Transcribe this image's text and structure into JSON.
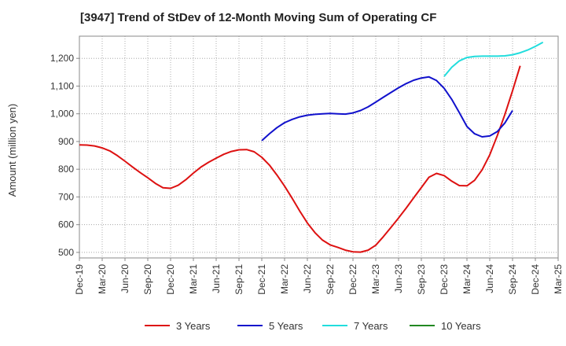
{
  "chart_data": {
    "type": "line",
    "title": "[3947]  Trend of StDev of 12-Month Moving Sum of Operating CF",
    "ylabel": "Amount (million yen)",
    "xlabel": "",
    "ylim": [
      480,
      1280
    ],
    "yticks": [
      500,
      600,
      700,
      800,
      900,
      1000,
      1100,
      1200
    ],
    "ytick_labels": [
      "500",
      "600",
      "700",
      "800",
      "900",
      "1,000",
      "1,100",
      "1,200"
    ],
    "xtick_labels": [
      "Dec-19",
      "Mar-20",
      "Jun-20",
      "Sep-20",
      "Dec-20",
      "Mar-21",
      "Jun-21",
      "Sep-21",
      "Dec-21",
      "Mar-22",
      "Jun-22",
      "Sep-22",
      "Dec-22",
      "Mar-23",
      "Jun-23",
      "Sep-23",
      "Dec-23",
      "Mar-24",
      "Jun-24",
      "Sep-24",
      "Dec-24",
      "Mar-25"
    ],
    "grid": true,
    "legend_position": "bottom",
    "series": [
      {
        "name": "3 Years",
        "color": "#dd1111",
        "start_index": 0,
        "values": [
          888,
          887,
          884,
          877,
          866,
          849,
          829,
          808,
          788,
          769,
          749,
          733,
          731,
          742,
          762,
          786,
          808,
          825,
          840,
          854,
          864,
          870,
          871,
          863,
          843,
          815,
          779,
          739,
          695,
          649,
          606,
          571,
          544,
          527,
          518,
          508,
          502,
          501,
          508,
          526,
          557,
          590,
          624,
          660,
          697,
          734,
          771,
          785,
          777,
          757,
          741,
          740,
          760,
          798,
          852,
          922,
          998,
          1083,
          1173
        ]
      },
      {
        "name": "5 Years",
        "color": "#1111cc",
        "start_index": 24,
        "values": [
          903,
          928,
          950,
          968,
          980,
          989,
          995,
          998,
          1000,
          1001,
          1000,
          999,
          1003,
          1012,
          1025,
          1042,
          1060,
          1077,
          1094,
          1109,
          1121,
          1129,
          1133,
          1120,
          1092,
          1052,
          1004,
          954,
          928,
          917,
          920,
          936,
          967,
          1012
        ]
      },
      {
        "name": "7 Years",
        "color": "#22dddd",
        "start_index": 48,
        "values": [
          1135,
          1168,
          1191,
          1203,
          1207,
          1208,
          1208,
          1208,
          1209,
          1213,
          1220,
          1230,
          1243,
          1258
        ]
      },
      {
        "name": "10 Years",
        "color": "#228822",
        "start_index": 0,
        "values": []
      }
    ]
  }
}
